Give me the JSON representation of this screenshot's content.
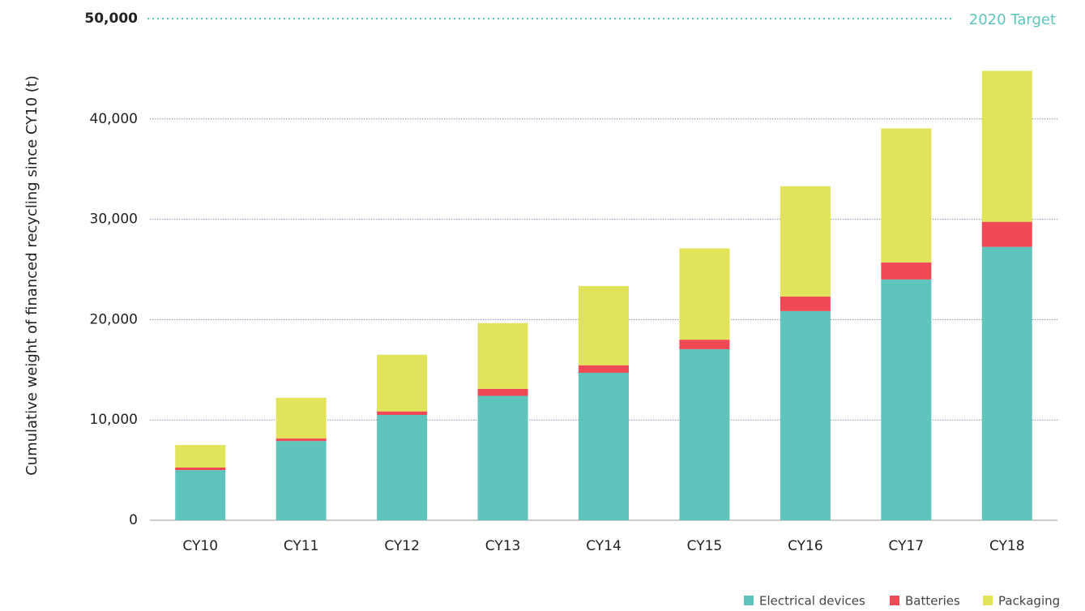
{
  "chart_data": {
    "type": "stacked_bar",
    "y_label": "Cumulative weight of financed recycling since CY10 (t)",
    "categories": [
      "CY10",
      "CY11",
      "CY12",
      "CY13",
      "CY14",
      "CY15",
      "CY16",
      "CY17",
      "CY18"
    ],
    "series": [
      {
        "name": "Electrical devices",
        "color": "#5fc4bc",
        "values": [
          5000,
          7900,
          10500,
          12400,
          14700,
          17050,
          20850,
          24000,
          27250
        ]
      },
      {
        "name": "Batteries",
        "color": "#ef4956",
        "values": [
          250,
          250,
          350,
          700,
          750,
          950,
          1450,
          1700,
          2500
        ]
      },
      {
        "name": "Packaging",
        "color": "#e1e35a",
        "values": [
          2250,
          4050,
          5650,
          6550,
          7900,
          9100,
          11000,
          13350,
          15050
        ]
      }
    ],
    "ylim": [
      0,
      50000
    ],
    "yticks": [
      0,
      {
        "value": 10000,
        "label": "10,000"
      },
      {
        "value": 20000,
        "label": "20,000"
      },
      {
        "value": 30000,
        "label": "30,000"
      },
      {
        "value": 40000,
        "label": "40,000"
      },
      {
        "value": 50000,
        "label": "50,000"
      }
    ],
    "grid": true,
    "annotations": [
      {
        "text": "2020 Target",
        "value": 50000,
        "color": "#5fc4bc"
      }
    ],
    "legend": "bottom-right"
  }
}
